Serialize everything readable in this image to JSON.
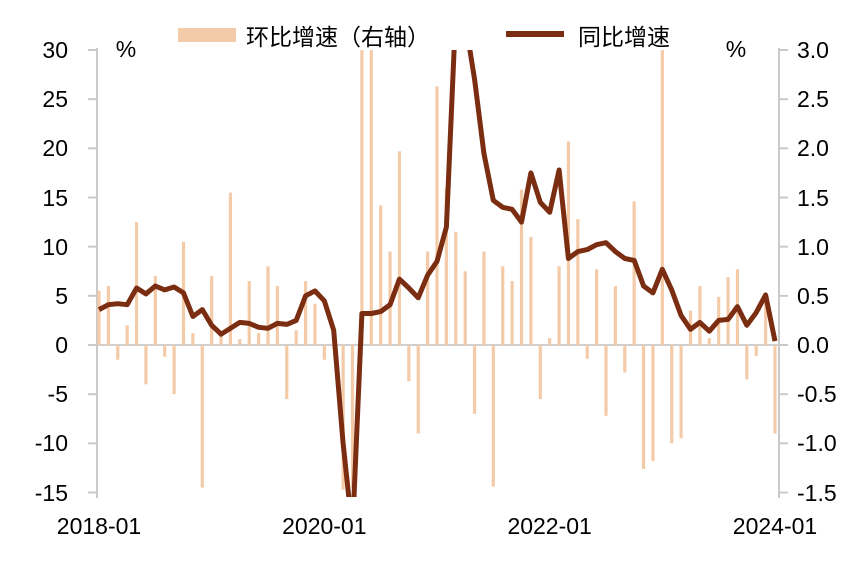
{
  "legend": {
    "bar_label": "环比增速（右轴）",
    "line_label": "同比增速"
  },
  "axes": {
    "left_unit": "%",
    "right_unit": "%",
    "left_ticks": [
      "30",
      "25",
      "20",
      "15",
      "10",
      "5",
      "0",
      "-5",
      "-10",
      "-15"
    ],
    "right_ticks": [
      "3.0",
      "2.5",
      "2.0",
      "1.5",
      "1.0",
      "0.5",
      "0.0",
      "-0.5",
      "-1.0",
      "-1.5"
    ],
    "x_ticks": [
      "2018-01",
      "2020-01",
      "2022-01",
      "2024-01"
    ]
  },
  "colors": {
    "bar": "#F4CBA9",
    "line": "#7B2D12",
    "axis": "#C9C9C9",
    "zero_line": "#CFCFCF",
    "text": "#000000"
  },
  "chart_data": {
    "type": "combo",
    "title": "",
    "x_tick_labels": [
      "2018-01",
      "2020-01",
      "2022-01",
      "2024-01"
    ],
    "ylabel_left": "%",
    "ylabel_right": "%",
    "left_ylim": [
      -15,
      30
    ],
    "right_ylim": [
      -1.5,
      3.0
    ],
    "grid": "zero-line-only",
    "legend_position": "top",
    "note": "Line (同比增速, YoY %) on left axis, clipped at plot edges when beyond [-15,30]; bars (环比增速, MoM %) on right axis, clipped above 3.0.",
    "x": [
      "2018-01",
      "2018-02",
      "2018-03",
      "2018-04",
      "2018-05",
      "2018-06",
      "2018-07",
      "2018-08",
      "2018-09",
      "2018-10",
      "2018-11",
      "2018-12",
      "2019-01",
      "2019-02",
      "2019-03",
      "2019-04",
      "2019-05",
      "2019-06",
      "2019-07",
      "2019-08",
      "2019-09",
      "2019-10",
      "2019-11",
      "2019-12",
      "2020-01",
      "2020-02",
      "2020-03",
      "2020-04",
      "2020-05",
      "2020-06",
      "2020-07",
      "2020-08",
      "2020-09",
      "2020-10",
      "2020-11",
      "2020-12",
      "2021-01",
      "2021-02",
      "2021-03",
      "2021-04",
      "2021-05",
      "2021-06",
      "2021-07",
      "2021-08",
      "2021-09",
      "2021-10",
      "2021-11",
      "2021-12",
      "2022-01",
      "2022-02",
      "2022-03",
      "2022-04",
      "2022-05",
      "2022-06",
      "2022-07",
      "2022-08",
      "2022-09",
      "2022-10",
      "2022-11",
      "2022-12",
      "2023-01",
      "2023-02",
      "2023-03",
      "2023-04",
      "2023-05",
      "2023-06",
      "2023-07",
      "2023-08",
      "2023-09",
      "2023-10",
      "2023-11",
      "2023-12",
      "2024-01"
    ],
    "series": [
      {
        "name": "环比增速（右轴）",
        "type": "bar",
        "axis": "right",
        "values": [
          0.55,
          0.6,
          -0.15,
          0.2,
          1.25,
          -0.4,
          0.7,
          -0.12,
          -0.5,
          1.05,
          0.12,
          -1.45,
          0.7,
          0.1,
          1.55,
          0.06,
          0.65,
          0.12,
          0.8,
          0.6,
          -0.55,
          0.15,
          0.65,
          0.42,
          -0.15,
          0.06,
          -1.47,
          -1.45,
          3.2,
          3.1,
          1.42,
          0.95,
          1.97,
          -0.37,
          -0.9,
          0.95,
          2.63,
          1.6,
          1.15,
          0.75,
          -0.7,
          0.95,
          -1.44,
          0.8,
          0.65,
          1.58,
          1.1,
          -0.55,
          0.07,
          0.8,
          2.07,
          1.28,
          -0.14,
          0.77,
          -0.72,
          0.6,
          -0.28,
          1.46,
          -1.26,
          -1.18,
          3.4,
          -1.0,
          -0.95,
          0.35,
          0.6,
          0.07,
          0.49,
          0.69,
          0.77,
          -0.35,
          -0.11,
          0.49,
          -0.9
        ]
      },
      {
        "name": "同比增速",
        "type": "line",
        "axis": "left",
        "values": [
          3.6,
          4.1,
          4.2,
          4.1,
          5.8,
          5.2,
          6.0,
          5.6,
          5.9,
          5.3,
          2.9,
          3.6,
          2.0,
          1.1,
          1.7,
          2.3,
          2.2,
          1.8,
          1.7,
          2.2,
          2.1,
          2.5,
          5.0,
          5.5,
          4.5,
          1.5,
          -10.0,
          -19.0,
          3.2,
          3.2,
          3.4,
          4.1,
          6.7,
          5.8,
          4.8,
          7.1,
          8.5,
          12.0,
          34.0,
          33.0,
          27.0,
          19.5,
          14.7,
          14.0,
          13.8,
          12.5,
          17.5,
          14.5,
          13.5,
          17.8,
          8.8,
          9.5,
          9.7,
          10.2,
          10.4,
          9.5,
          8.8,
          8.6,
          6.0,
          5.3,
          7.7,
          5.6,
          3.0,
          1.6,
          2.3,
          1.4,
          2.5,
          2.6,
          3.9,
          2.0,
          3.3,
          5.1,
          0.4
        ]
      }
    ]
  }
}
